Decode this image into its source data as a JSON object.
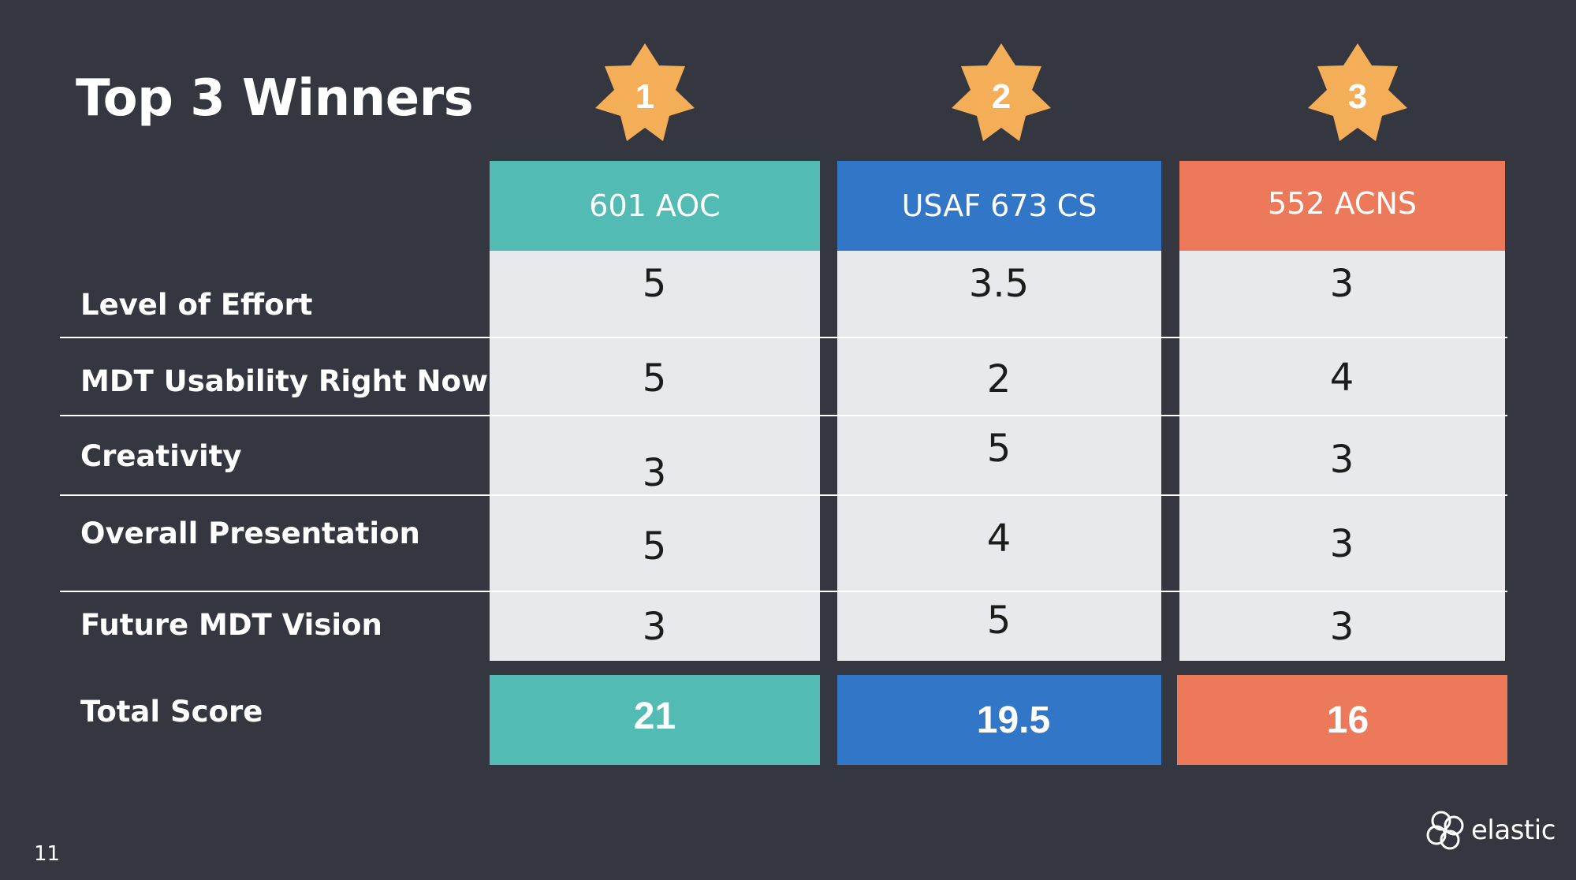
{
  "slide": {
    "title": "Top 3 Winners",
    "page_number": "11"
  },
  "colors": {
    "background": "#343740",
    "teal": "#52bbb3",
    "blue": "#3176c7",
    "orange": "#ec7a5a",
    "star": "#f4ae57",
    "cell": "#e8e9ec"
  },
  "teams": [
    {
      "rank": "1",
      "name": "601 AOC",
      "total": "21"
    },
    {
      "rank": "2",
      "name": "USAF 673 CS",
      "total": "19.5"
    },
    {
      "rank": "3",
      "name": "552 ACNS",
      "total": "16"
    }
  ],
  "rows": [
    {
      "label": "Level of Effort",
      "scores": [
        "5",
        "3.5",
        "3"
      ]
    },
    {
      "label": "MDT Usability Right Now",
      "scores": [
        "5",
        "2",
        "4"
      ]
    },
    {
      "label": "Creativity",
      "scores": [
        "3",
        "5",
        "3"
      ]
    },
    {
      "label": "Overall Presentation",
      "scores": [
        "5",
        "4",
        "3"
      ]
    },
    {
      "label": "Future MDT Vision",
      "scores": [
        "3",
        "5",
        "3"
      ]
    }
  ],
  "total_row": {
    "label": "Total Score"
  },
  "logo": {
    "icon": "elastic-logo-icon",
    "text": "elastic"
  }
}
